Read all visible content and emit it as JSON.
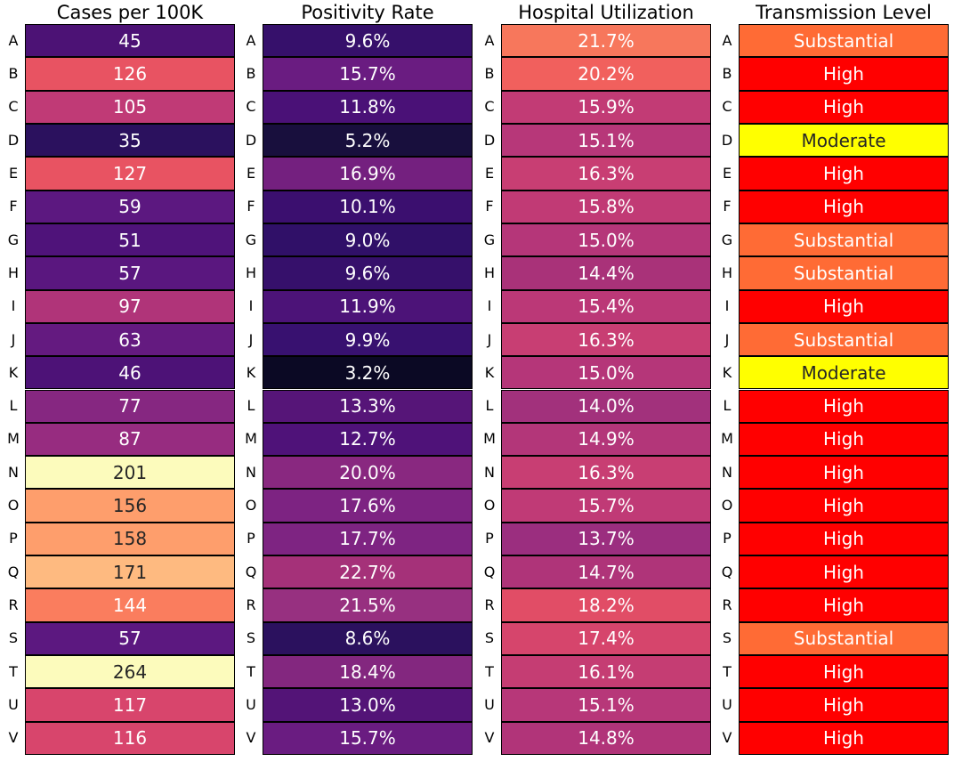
{
  "chart_data": [
    {
      "type": "heatmap",
      "title": "Cases per 100K",
      "categories": [
        "A",
        "B",
        "C",
        "D",
        "E",
        "F",
        "G",
        "H",
        "I",
        "J",
        "K",
        "L",
        "M",
        "N",
        "O",
        "P",
        "Q",
        "R",
        "S",
        "T",
        "U",
        "V"
      ],
      "values": [
        45,
        126,
        105,
        35,
        127,
        59,
        51,
        57,
        97,
        63,
        46,
        77,
        87,
        201,
        156,
        158,
        171,
        144,
        57,
        264,
        117,
        116
      ],
      "labels": [
        "45",
        "126",
        "105",
        "35",
        "127",
        "59",
        "51",
        "57",
        "97",
        "63",
        "46",
        "77",
        "87",
        "201",
        "156",
        "158",
        "171",
        "144",
        "57",
        "264",
        "117",
        "116"
      ],
      "colors": [
        "#4c1275",
        "#e85362",
        "#c03a76",
        "#2b115e",
        "#e85362",
        "#5c1880",
        "#4f137a",
        "#5a177f",
        "#b03479",
        "#641a80",
        "#4d1277",
        "#862781",
        "#972c80",
        "#fcfbbc",
        "#fe9e6c",
        "#fe9e6c",
        "#feba80",
        "#fa7d5e",
        "#5c1880",
        "#fcfbbc",
        "#d8456c",
        "#d8456c"
      ],
      "text_colors": [
        "#ffffff",
        "#ffffff",
        "#ffffff",
        "#ffffff",
        "#ffffff",
        "#ffffff",
        "#ffffff",
        "#ffffff",
        "#ffffff",
        "#ffffff",
        "#ffffff",
        "#ffffff",
        "#ffffff",
        "#262626",
        "#262626",
        "#262626",
        "#262626",
        "#ffffff",
        "#ffffff",
        "#262626",
        "#ffffff",
        "#ffffff"
      ]
    },
    {
      "type": "heatmap",
      "title": "Positivity Rate",
      "categories": [
        "A",
        "B",
        "C",
        "D",
        "E",
        "F",
        "G",
        "H",
        "I",
        "J",
        "K",
        "L",
        "M",
        "N",
        "O",
        "P",
        "Q",
        "R",
        "S",
        "T",
        "U",
        "V"
      ],
      "values": [
        9.6,
        15.7,
        11.8,
        5.2,
        16.9,
        10.1,
        9.0,
        9.6,
        11.9,
        9.9,
        3.2,
        13.3,
        12.7,
        20.0,
        17.6,
        17.7,
        22.7,
        21.5,
        8.6,
        18.4,
        13.0,
        15.7
      ],
      "labels": [
        "9.6%",
        "15.7%",
        "11.8%",
        "5.2%",
        "16.9%",
        "10.1%",
        "9.0%",
        "9.6%",
        "11.9%",
        "9.9%",
        "3.2%",
        "13.3%",
        "12.7%",
        "20.0%",
        "17.6%",
        "17.7%",
        "22.7%",
        "21.5%",
        "8.6%",
        "18.4%",
        "13.0%",
        "15.7%"
      ],
      "colors": [
        "#36106b",
        "#6a1c81",
        "#4a1177",
        "#180f3d",
        "#74207f",
        "#3b0f6f",
        "#301068",
        "#36106b",
        "#4c1378",
        "#381170",
        "#0b0924",
        "#561578",
        "#4f1279",
        "#892880",
        "#7d2382",
        "#7e2482",
        "#a53179",
        "#973080",
        "#2b115e",
        "#83277f",
        "#531477",
        "#6a1c81"
      ],
      "text_colors": [
        "#ffffff",
        "#ffffff",
        "#ffffff",
        "#ffffff",
        "#ffffff",
        "#ffffff",
        "#ffffff",
        "#ffffff",
        "#ffffff",
        "#ffffff",
        "#ffffff",
        "#ffffff",
        "#ffffff",
        "#ffffff",
        "#ffffff",
        "#ffffff",
        "#ffffff",
        "#ffffff",
        "#ffffff",
        "#ffffff",
        "#ffffff",
        "#ffffff"
      ]
    },
    {
      "type": "heatmap",
      "title": "Hospital Utilization",
      "categories": [
        "A",
        "B",
        "C",
        "D",
        "E",
        "F",
        "G",
        "H",
        "I",
        "J",
        "K",
        "L",
        "M",
        "N",
        "O",
        "P",
        "Q",
        "R",
        "S",
        "T",
        "U",
        "V"
      ],
      "values": [
        21.7,
        20.2,
        15.9,
        15.1,
        16.3,
        15.8,
        15.0,
        14.4,
        15.4,
        16.3,
        15.0,
        14.0,
        14.9,
        16.3,
        15.7,
        13.7,
        14.7,
        18.2,
        17.4,
        16.1,
        15.1,
        14.8
      ],
      "labels": [
        "21.7%",
        "20.2%",
        "15.9%",
        "15.1%",
        "16.3%",
        "15.8%",
        "15.0%",
        "14.4%",
        "15.4%",
        "16.3%",
        "15.0%",
        "14.0%",
        "14.9%",
        "16.3%",
        "15.7%",
        "13.7%",
        "14.7%",
        "18.2%",
        "17.4%",
        "16.1%",
        "15.1%",
        "14.8%"
      ],
      "colors": [
        "#f7775c",
        "#f1605d",
        "#c23b75",
        "#b73779",
        "#c83e73",
        "#c13a75",
        "#b53679",
        "#a93279",
        "#bb3877",
        "#c83e73",
        "#b53679",
        "#a2317c",
        "#b33679",
        "#c83e73",
        "#c03a76",
        "#9b2e7f",
        "#af3479",
        "#e14d66",
        "#d6456c",
        "#c53d73",
        "#b73779",
        "#b13479"
      ],
      "text_colors": [
        "#ffffff",
        "#ffffff",
        "#ffffff",
        "#ffffff",
        "#ffffff",
        "#ffffff",
        "#ffffff",
        "#ffffff",
        "#ffffff",
        "#ffffff",
        "#ffffff",
        "#ffffff",
        "#ffffff",
        "#ffffff",
        "#ffffff",
        "#ffffff",
        "#ffffff",
        "#ffffff",
        "#ffffff",
        "#ffffff",
        "#ffffff",
        "#ffffff"
      ]
    },
    {
      "type": "table",
      "title": "Transmission Level",
      "categories": [
        "A",
        "B",
        "C",
        "D",
        "E",
        "F",
        "G",
        "H",
        "I",
        "J",
        "K",
        "L",
        "M",
        "N",
        "O",
        "P",
        "Q",
        "R",
        "S",
        "T",
        "U",
        "V"
      ],
      "labels": [
        "Substantial",
        "High",
        "High",
        "Moderate",
        "High",
        "High",
        "Substantial",
        "Substantial",
        "High",
        "Substantial",
        "Moderate",
        "High",
        "High",
        "High",
        "High",
        "High",
        "High",
        "High",
        "Substantial",
        "High",
        "High",
        "High"
      ],
      "colors": [
        "#ff6b35",
        "#ff0000",
        "#ff0000",
        "#ffff00",
        "#ff0000",
        "#ff0000",
        "#ff6b35",
        "#ff6b35",
        "#ff0000",
        "#ff6b35",
        "#ffff00",
        "#ff0000",
        "#ff0000",
        "#ff0000",
        "#ff0000",
        "#ff0000",
        "#ff0000",
        "#ff0000",
        "#ff6b35",
        "#ff0000",
        "#ff0000",
        "#ff0000"
      ],
      "text_colors": [
        "#ffffff",
        "#ffffff",
        "#ffffff",
        "#262626",
        "#ffffff",
        "#ffffff",
        "#ffffff",
        "#ffffff",
        "#ffffff",
        "#ffffff",
        "#262626",
        "#ffffff",
        "#ffffff",
        "#ffffff",
        "#ffffff",
        "#ffffff",
        "#ffffff",
        "#ffffff",
        "#ffffff",
        "#ffffff",
        "#ffffff",
        "#ffffff"
      ]
    }
  ]
}
